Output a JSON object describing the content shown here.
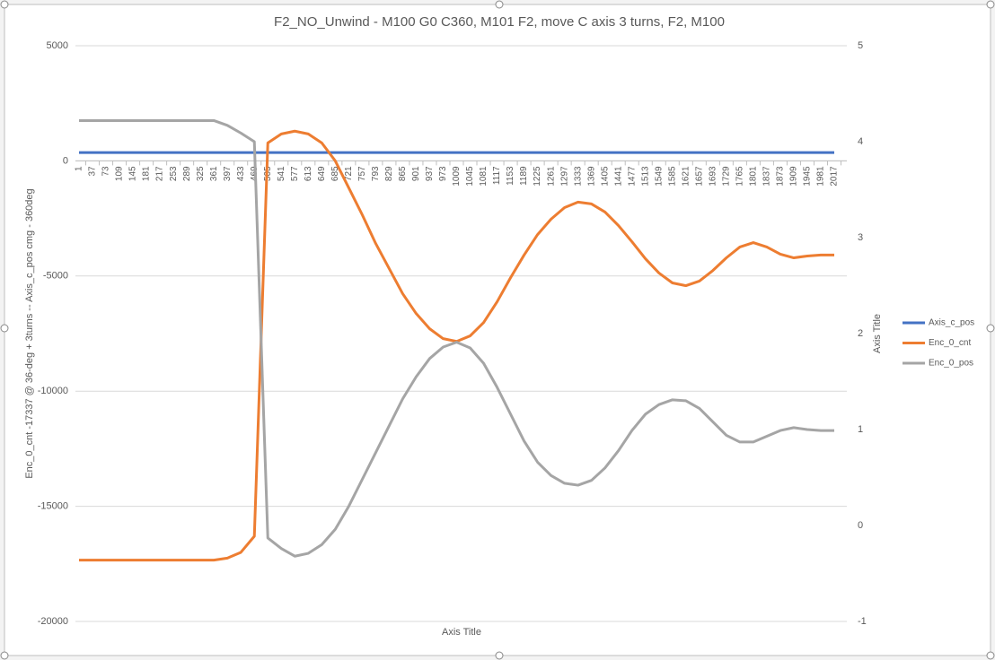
{
  "chart_data": {
    "type": "line",
    "title": "F2_NO_Unwind - M100 G0 C360, M101 F2, move C axis 3 turns, F2, M100",
    "y_label": "Enc_0_cnt -17337 @ 36-deg + 3turns  --  Axis_c_pos cmg - 360deg",
    "y2_label": "Axis Title",
    "x_label": "Axis Title",
    "categories": [
      "1",
      "37",
      "73",
      "109",
      "145",
      "181",
      "217",
      "253",
      "289",
      "325",
      "361",
      "397",
      "433",
      "469",
      "505",
      "541",
      "577",
      "613",
      "649",
      "685",
      "721",
      "757",
      "793",
      "829",
      "865",
      "901",
      "937",
      "973",
      "1009",
      "1045",
      "1081",
      "1117",
      "1153",
      "1189",
      "1225",
      "1261",
      "1297",
      "1333",
      "1369",
      "1405",
      "1441",
      "1477",
      "1513",
      "1549",
      "1585",
      "1621",
      "1657",
      "1693",
      "1729",
      "1765",
      "1801",
      "1837",
      "1873",
      "1909",
      "1945",
      "1981",
      "2017"
    ],
    "ylim": [
      -20000,
      5000
    ],
    "yticks": [
      -20000,
      -15000,
      -10000,
      -5000,
      0,
      5000
    ],
    "y2lim": [
      -1,
      5
    ],
    "y2ticks": [
      -1,
      0,
      1,
      2,
      3,
      4,
      5
    ],
    "grid": true,
    "legend": "right",
    "series": [
      {
        "name": "Axis_c_pos",
        "color": "#4472c4",
        "values": [
          360,
          360,
          360,
          360,
          360,
          360,
          360,
          360,
          360,
          360,
          360,
          360,
          360,
          360,
          360,
          360,
          360,
          360,
          360,
          360,
          360,
          360,
          360,
          360,
          360,
          360,
          360,
          360,
          360,
          360,
          360,
          360,
          360,
          360,
          360,
          360,
          360,
          360,
          360,
          360,
          360,
          360,
          360,
          360,
          360,
          360,
          360,
          360,
          360,
          360,
          360,
          360,
          360,
          360,
          360,
          360,
          360
        ]
      },
      {
        "name": "Enc_0_cnt",
        "color": "#ed7d31",
        "values": [
          -17337,
          -17337,
          -17337,
          -17337,
          -17337,
          -17337,
          -17337,
          -17337,
          -17337,
          -17337,
          -17337,
          -17250,
          -17000,
          -16300,
          780,
          1170,
          1290,
          1170,
          780,
          0,
          -1170,
          -2340,
          -3590,
          -4680,
          -5770,
          -6630,
          -7290,
          -7720,
          -7840,
          -7600,
          -7020,
          -6120,
          -5070,
          -4090,
          -3200,
          -2530,
          -2030,
          -1790,
          -1870,
          -2220,
          -2810,
          -3510,
          -4250,
          -4870,
          -5300,
          -5420,
          -5220,
          -4760,
          -4210,
          -3740,
          -3550,
          -3740,
          -4050,
          -4210,
          -4130,
          -4090,
          -4090
        ]
      },
      {
        "name": "Enc_0_pos",
        "color": "#a5a5a5",
        "axis": "y2",
        "values": [
          4.22,
          4.22,
          4.22,
          4.22,
          4.22,
          4.22,
          4.22,
          4.22,
          4.22,
          4.22,
          4.22,
          4.17,
          4.09,
          4.0,
          -0.13,
          -0.24,
          -0.32,
          -0.29,
          -0.2,
          -0.04,
          0.2,
          0.48,
          0.76,
          1.04,
          1.32,
          1.55,
          1.74,
          1.86,
          1.91,
          1.85,
          1.69,
          1.44,
          1.16,
          0.88,
          0.66,
          0.52,
          0.44,
          0.42,
          0.47,
          0.6,
          0.78,
          0.99,
          1.16,
          1.26,
          1.31,
          1.3,
          1.22,
          1.08,
          0.94,
          0.87,
          0.87,
          0.93,
          0.99,
          1.02,
          1.0,
          0.99,
          0.99
        ]
      }
    ]
  }
}
